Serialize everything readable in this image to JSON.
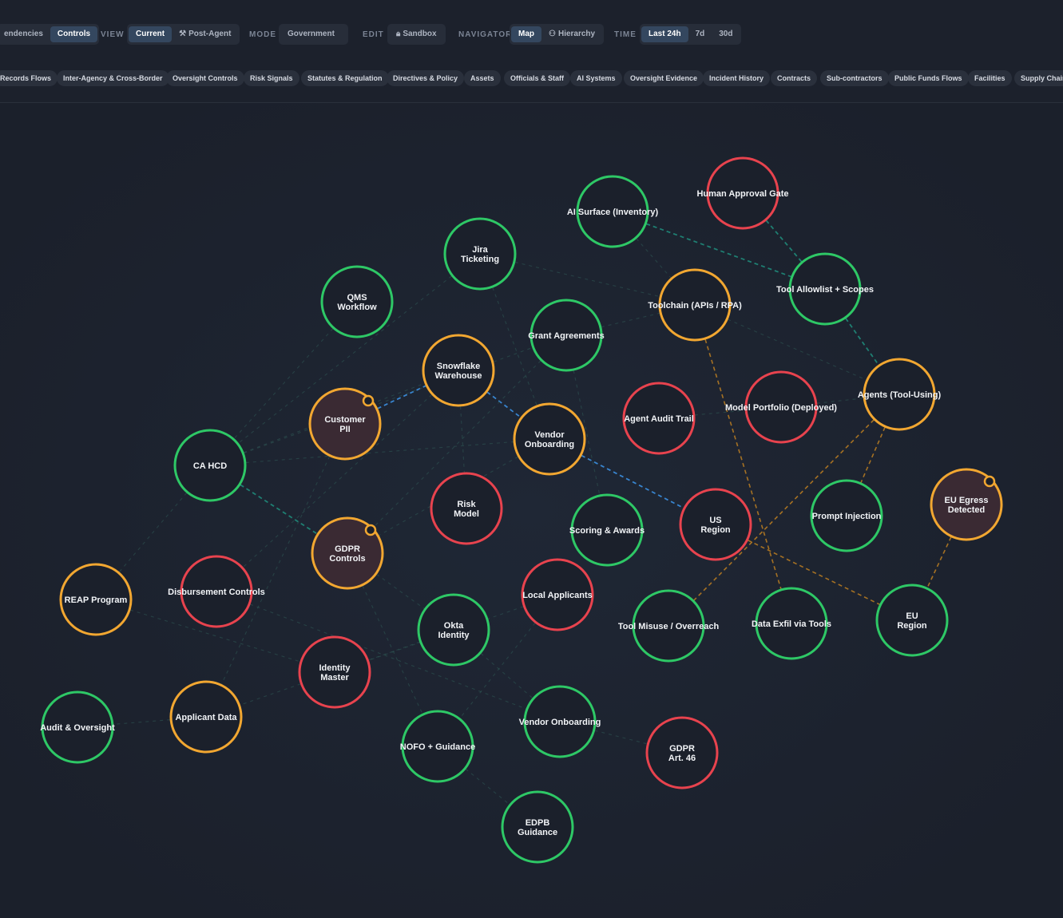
{
  "toolbar": {
    "deps_controls": [
      "endencies",
      "Controls"
    ],
    "view_label": "VIEW",
    "view_options": [
      "Current",
      "Post-Agent"
    ],
    "mode_label": "MODE",
    "mode_value": "Government",
    "edit_label": "EDIT",
    "edit_value": "Sandbox",
    "navigator_label": "NAVIGATOR",
    "navigator_options": [
      "Map",
      "Hierarchy"
    ],
    "time_label": "TIME",
    "time_options": [
      "Last 24h",
      "7d",
      "30d"
    ]
  },
  "chips": [
    "Records Flows",
    "Inter-Agency & Cross-Border",
    "Oversight Controls",
    "Risk Signals",
    "Statutes & Regulation",
    "Directives & Policy",
    "Assets",
    "Officials & Staff",
    "AI Systems",
    "Oversight Evidence",
    "Incident History",
    "Contracts",
    "Sub-contractors",
    "Public Funds Flows",
    "Facilities",
    "Supply Chain"
  ],
  "colors": {
    "green": "#2ec866",
    "orange": "#f2a731",
    "red": "#e8434e",
    "teal_edge": "#1f8a7a",
    "blue_edge": "#3a8ad8",
    "orange_edge": "#b57a22",
    "faint_edge": "#2f5a55"
  },
  "nodes": [
    {
      "id": "ai-surface",
      "label": [
        "AI Surface (Inventory)"
      ],
      "status": "green"
    },
    {
      "id": "human-approval",
      "label": [
        "Human Approval Gate"
      ],
      "status": "red"
    },
    {
      "id": "jira",
      "label": [
        "Jira",
        "Ticketing"
      ],
      "status": "green"
    },
    {
      "id": "qms",
      "label": [
        "QMS",
        "Workflow"
      ],
      "status": "green"
    },
    {
      "id": "toolchain",
      "label": [
        "Toolchain (APIs / RPA)"
      ],
      "status": "orange"
    },
    {
      "id": "tool-allowlist",
      "label": [
        "Tool Allowlist + Scopes"
      ],
      "status": "green"
    },
    {
      "id": "grant-agreements",
      "label": [
        "Grant Agreements"
      ],
      "status": "green"
    },
    {
      "id": "snowflake",
      "label": [
        "Snowflake",
        "Warehouse"
      ],
      "status": "orange"
    },
    {
      "id": "customer-pii",
      "label": [
        "Customer",
        "PII"
      ],
      "status": "orange",
      "alert": true
    },
    {
      "id": "agents",
      "label": [
        "Agents (Tool-Using)"
      ],
      "status": "orange"
    },
    {
      "id": "model-portfolio",
      "label": [
        "Model Portfolio (Deployed)"
      ],
      "status": "red"
    },
    {
      "id": "agent-audit",
      "label": [
        "Agent Audit Trail"
      ],
      "status": "red"
    },
    {
      "id": "vendor-onboarding-1",
      "label": [
        "Vendor",
        "Onboarding"
      ],
      "status": "orange"
    },
    {
      "id": "ca-hcd",
      "label": [
        "CA HCD"
      ],
      "status": "green"
    },
    {
      "id": "risk-model",
      "label": [
        "Risk",
        "Model"
      ],
      "status": "red"
    },
    {
      "id": "scoring",
      "label": [
        "Scoring & Awards"
      ],
      "status": "green"
    },
    {
      "id": "us-region",
      "label": [
        "US",
        "Region"
      ],
      "status": "red"
    },
    {
      "id": "prompt-injection",
      "label": [
        "Prompt Injection"
      ],
      "status": "green"
    },
    {
      "id": "eu-egress",
      "label": [
        "EU Egress",
        "Detected"
      ],
      "status": "orange",
      "alert": true
    },
    {
      "id": "gdpr-controls",
      "label": [
        "GDPR",
        "Controls"
      ],
      "status": "orange",
      "alert": true
    },
    {
      "id": "reap",
      "label": [
        "REAP Program"
      ],
      "status": "orange"
    },
    {
      "id": "disbursement",
      "label": [
        "Disbursement Controls"
      ],
      "status": "red"
    },
    {
      "id": "local-applicants",
      "label": [
        "Local Applicants"
      ],
      "status": "red"
    },
    {
      "id": "okta",
      "label": [
        "Okta",
        "Identity"
      ],
      "status": "green"
    },
    {
      "id": "tool-misuse",
      "label": [
        "Tool Misuse / Overreach"
      ],
      "status": "green"
    },
    {
      "id": "data-exfil",
      "label": [
        "Data Exfil via Tools"
      ],
      "status": "green"
    },
    {
      "id": "eu-region",
      "label": [
        "EU",
        "Region"
      ],
      "status": "green"
    },
    {
      "id": "identity-master",
      "label": [
        "Identity",
        "Master"
      ],
      "status": "red"
    },
    {
      "id": "audit-oversight",
      "label": [
        "Audit & Oversight"
      ],
      "status": "green"
    },
    {
      "id": "applicant-data",
      "label": [
        "Applicant Data"
      ],
      "status": "orange"
    },
    {
      "id": "vendor-onboarding-2",
      "label": [
        "Vendor Onboarding"
      ],
      "status": "green"
    },
    {
      "id": "nofo",
      "label": [
        "NOFO + Guidance"
      ],
      "status": "green"
    },
    {
      "id": "gdpr-art46",
      "label": [
        "GDPR",
        "Art. 46"
      ],
      "status": "red"
    },
    {
      "id": "edpb",
      "label": [
        "EDPB",
        "Guidance"
      ],
      "status": "green"
    }
  ],
  "edges": [
    {
      "from": "ai-surface",
      "to": "tool-allowlist",
      "style": "teal"
    },
    {
      "from": "human-approval",
      "to": "tool-allowlist",
      "style": "teal"
    },
    {
      "from": "tool-allowlist",
      "to": "agents",
      "style": "teal"
    },
    {
      "from": "customer-pii",
      "to": "snowflake",
      "style": "blue"
    },
    {
      "from": "snowflake",
      "to": "vendor-onboarding-1",
      "style": "blue"
    },
    {
      "from": "vendor-onboarding-1",
      "to": "us-region",
      "style": "blue"
    },
    {
      "from": "ca-hcd",
      "to": "gdpr-controls",
      "style": "teal"
    },
    {
      "from": "toolchain",
      "to": "data-exfil",
      "style": "orange"
    },
    {
      "from": "agents",
      "to": "tool-misuse",
      "style": "orange"
    },
    {
      "from": "agents",
      "to": "prompt-injection",
      "style": "orange"
    },
    {
      "from": "us-region",
      "to": "eu-region",
      "style": "orange"
    },
    {
      "from": "eu-egress",
      "to": "eu-region",
      "style": "orange"
    },
    {
      "from": "jira",
      "to": "toolchain",
      "style": "faint"
    },
    {
      "from": "grant-agreements",
      "to": "toolchain",
      "style": "faint"
    },
    {
      "from": "toolchain",
      "to": "agents",
      "style": "faint"
    },
    {
      "from": "ai-surface",
      "to": "toolchain",
      "style": "faint"
    },
    {
      "from": "model-portfolio",
      "to": "agents",
      "style": "faint"
    },
    {
      "from": "agent-audit",
      "to": "model-portfolio",
      "style": "faint"
    },
    {
      "from": "qms",
      "to": "ca-hcd",
      "style": "faint"
    },
    {
      "from": "jira",
      "to": "ca-hcd",
      "style": "faint"
    },
    {
      "from": "ca-hcd",
      "to": "snowflake",
      "style": "faint"
    },
    {
      "from": "ca-hcd",
      "to": "vendor-onboarding-1",
      "style": "faint"
    },
    {
      "from": "ca-hcd",
      "to": "grant-agreements",
      "style": "faint"
    },
    {
      "from": "ca-hcd",
      "to": "reap",
      "style": "faint"
    },
    {
      "from": "jira",
      "to": "vendor-onboarding-1",
      "style": "faint"
    },
    {
      "from": "grant-agreements",
      "to": "scoring",
      "style": "faint"
    },
    {
      "from": "snowflake",
      "to": "risk-model",
      "style": "faint"
    },
    {
      "from": "grant-agreements",
      "to": "gdpr-controls",
      "style": "faint"
    },
    {
      "from": "vendor-onboarding-1",
      "to": "gdpr-controls",
      "style": "faint"
    },
    {
      "from": "snowflake",
      "to": "disbursement",
      "style": "faint"
    },
    {
      "from": "gdpr-controls",
      "to": "okta",
      "style": "faint"
    },
    {
      "from": "gdpr-controls",
      "to": "nofo",
      "style": "faint"
    },
    {
      "from": "local-applicants",
      "to": "identity-master",
      "style": "faint"
    },
    {
      "from": "local-applicants",
      "to": "nofo",
      "style": "faint"
    },
    {
      "from": "identity-master",
      "to": "applicant-data",
      "style": "faint"
    },
    {
      "from": "applicant-data",
      "to": "audit-oversight",
      "style": "faint"
    },
    {
      "from": "reap",
      "to": "identity-master",
      "style": "faint"
    },
    {
      "from": "disbursement",
      "to": "vendor-onboarding-2",
      "style": "faint"
    },
    {
      "from": "vendor-onboarding-2",
      "to": "gdpr-art46",
      "style": "faint"
    },
    {
      "from": "nofo",
      "to": "edpb",
      "style": "faint"
    },
    {
      "from": "okta",
      "to": "vendor-onboarding-2",
      "style": "faint"
    },
    {
      "from": "customer-pii",
      "to": "applicant-data",
      "style": "faint"
    },
    {
      "from": "okta",
      "to": "identity-master",
      "style": "faint"
    }
  ]
}
